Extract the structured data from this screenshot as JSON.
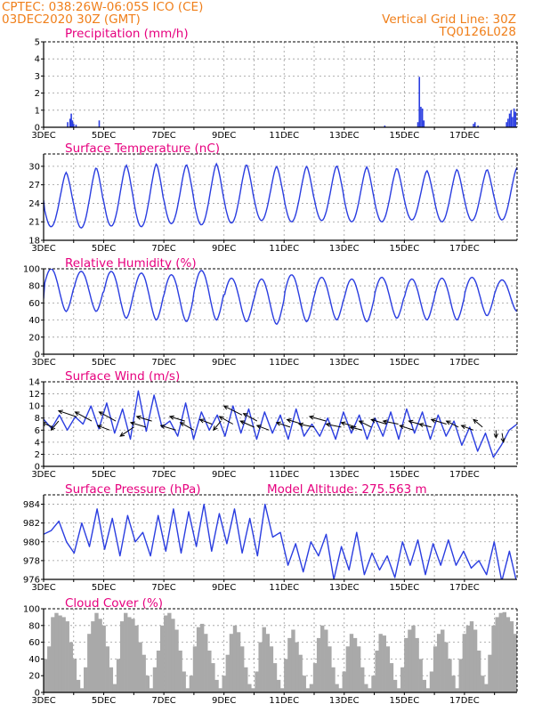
{
  "header": {
    "line1": "CPTEC:   038:26W-06:05S   ICO (CE)",
    "line2": "03DEC2020 30Z (GMT)",
    "grid_note": "Vertical Grid Line: 30Z",
    "code": "TQ0126L028"
  },
  "colors": {
    "header": "#f07f1a",
    "title": "#e6007e",
    "series": "#2a3de0",
    "cloud": "#a9a9a9",
    "grid": "#9a9a9a"
  },
  "chart_data": [
    {
      "id": "precip",
      "type": "bar",
      "title": "Precipitation (mm/h)",
      "x_ticks": [
        "3DEC",
        "5DEC",
        "7DEC",
        "9DEC",
        "11DEC",
        "13DEC",
        "15DEC",
        "17DEC"
      ],
      "x_tick_days": [
        0,
        2,
        4,
        6,
        8,
        10,
        12,
        14
      ],
      "xlim_days": [
        0,
        15.75
      ],
      "ylim": [
        0,
        5
      ],
      "yticks": [
        0,
        1,
        2,
        3,
        4,
        5
      ],
      "bars": [
        [
          0.8,
          0.3
        ],
        [
          0.88,
          0.5
        ],
        [
          0.92,
          0.8
        ],
        [
          0.96,
          0.4
        ],
        [
          1.0,
          0.2
        ],
        [
          1.08,
          0.15
        ],
        [
          1.85,
          0.4
        ],
        [
          11.35,
          0.1
        ],
        [
          12.45,
          0.3
        ],
        [
          12.5,
          2.95
        ],
        [
          12.55,
          1.2
        ],
        [
          12.6,
          1.1
        ],
        [
          12.65,
          0.4
        ],
        [
          14.3,
          0.2
        ],
        [
          14.35,
          0.3
        ],
        [
          14.45,
          0.1
        ],
        [
          15.4,
          0.3
        ],
        [
          15.45,
          0.5
        ],
        [
          15.5,
          0.8
        ],
        [
          15.55,
          1.0
        ],
        [
          15.6,
          0.6
        ],
        [
          15.65,
          1.1
        ],
        [
          15.7,
          0.9
        ]
      ]
    },
    {
      "id": "temp",
      "type": "line",
      "title": "Surface Temperature (nC)",
      "x_ticks": [
        "3DEC",
        "5DEC",
        "7DEC",
        "9DEC",
        "11DEC",
        "13DEC",
        "15DEC",
        "17DEC"
      ],
      "x_tick_days": [
        0,
        2,
        4,
        6,
        8,
        10,
        12,
        14
      ],
      "xlim_days": [
        0,
        15.75
      ],
      "ylim": [
        18,
        32
      ],
      "yticks": [
        18,
        21,
        24,
        27,
        30
      ],
      "series": [
        {
          "mins": [
            20.2,
            20.0,
            20.3,
            20.2,
            20.7,
            20.5,
            20.8,
            21.2,
            21.0,
            21.2,
            21.0,
            21.0,
            21.3,
            21.0,
            21.2,
            21.3
          ],
          "maxs": [
            29.0,
            29.8,
            30.2,
            30.4,
            30.3,
            30.4,
            30.3,
            30.0,
            30.0,
            30.1,
            29.9,
            29.7,
            29.3,
            29.5,
            29.5,
            29.8
          ],
          "start": 24.5,
          "end": 25.2
        }
      ]
    },
    {
      "id": "rh",
      "type": "line",
      "title": "Relative Humidity (%)",
      "x_ticks": [
        "3DEC",
        "5DEC",
        "7DEC",
        "9DEC",
        "11DEC",
        "13DEC",
        "15DEC",
        "17DEC"
      ],
      "x_tick_days": [
        0,
        2,
        4,
        6,
        8,
        10,
        12,
        14
      ],
      "xlim_days": [
        0,
        15.75
      ],
      "ylim": [
        0,
        100
      ],
      "yticks": [
        0,
        20,
        40,
        60,
        80,
        100
      ],
      "series": [
        {
          "mins": [
            50,
            50,
            42,
            40,
            38,
            40,
            38,
            35,
            38,
            40,
            38,
            42,
            40,
            40,
            45,
            50
          ],
          "maxs": [
            100,
            97,
            97,
            95,
            93,
            98,
            89,
            88,
            93,
            90,
            88,
            90,
            88,
            89,
            90,
            87
          ],
          "start": 65,
          "end": 70
        }
      ]
    },
    {
      "id": "wind",
      "type": "line",
      "title": "Surface Wind (m/s)",
      "x_ticks": [
        "3DEC",
        "5DEC",
        "7DEC",
        "9DEC",
        "11DEC",
        "13DEC",
        "15DEC",
        "17DEC"
      ],
      "x_tick_days": [
        0,
        2,
        4,
        6,
        8,
        10,
        12,
        14
      ],
      "xlim_days": [
        0,
        15.75
      ],
      "ylim": [
        0,
        14
      ],
      "yticks": [
        0,
        2,
        4,
        6,
        8,
        10,
        12,
        14
      ],
      "series": [
        {
          "values": [
            7.8,
            6.3,
            8.5,
            6.0,
            8.2,
            7.0,
            10.0,
            6.2,
            10.5,
            5.5,
            9.5,
            4.5,
            12.5,
            5.8,
            11.8,
            6.5,
            7.5,
            5.0,
            10.5,
            4.5,
            9.0,
            6.0,
            8.5,
            5.0,
            10.0,
            5.5,
            9.5,
            4.5,
            9.0,
            5.5,
            8.5,
            4.5,
            9.5,
            5.0,
            7.0,
            5.0,
            8.0,
            4.5,
            9.0,
            5.5,
            8.5,
            4.5,
            8.0,
            5.0,
            9.0,
            4.5,
            9.5,
            5.5,
            9.0,
            4.5,
            8.5,
            5.0,
            7.5,
            3.5,
            6.5,
            2.5,
            5.5,
            1.5,
            3.5,
            6.0,
            7.0
          ]
        }
      ],
      "arrows": [
        [
          0.3,
          6.5,
          -0.35,
          0.3
        ],
        [
          0.5,
          7.5,
          -0.25,
          -0.6
        ],
        [
          1.1,
          8.2,
          -0.6,
          0.4
        ],
        [
          1.6,
          7.5,
          -0.55,
          0.6
        ],
        [
          2.2,
          6.0,
          -0.4,
          0.3
        ],
        [
          2.4,
          7.5,
          -0.55,
          0.6
        ],
        [
          3.0,
          6.5,
          -0.45,
          -0.6
        ],
        [
          3.4,
          6.5,
          -0.5,
          0.3
        ],
        [
          3.6,
          7.5,
          -0.5,
          0.3
        ],
        [
          4.4,
          6.0,
          -0.5,
          0.3
        ],
        [
          4.7,
          7.5,
          -0.5,
          0.3
        ],
        [
          5.0,
          6.0,
          -0.45,
          0.5
        ],
        [
          5.6,
          7.0,
          -0.4,
          0.3
        ],
        [
          5.9,
          7.5,
          -0.25,
          -0.6
        ],
        [
          6.3,
          7.0,
          -0.45,
          0.5
        ],
        [
          6.6,
          8.5,
          -0.6,
          0.6
        ],
        [
          7.0,
          6.5,
          -0.45,
          0.4
        ],
        [
          7.1,
          7.5,
          -0.45,
          0.5
        ],
        [
          7.5,
          6.0,
          -0.4,
          0.3
        ],
        [
          8.2,
          6.5,
          -0.45,
          0.3
        ],
        [
          8.6,
          7.0,
          -0.5,
          0.3
        ],
        [
          9.0,
          6.5,
          -0.5,
          0.2
        ],
        [
          9.4,
          7.5,
          -0.55,
          0.3
        ],
        [
          9.9,
          6.5,
          -0.5,
          0.2
        ],
        [
          10.4,
          6.5,
          -0.5,
          0.3
        ],
        [
          10.6,
          6.0,
          -0.4,
          0.2
        ],
        [
          10.9,
          6.5,
          -0.4,
          0.4
        ],
        [
          11.4,
          7.0,
          -0.5,
          0.3
        ],
        [
          11.8,
          7.0,
          -0.5,
          0.2
        ],
        [
          12.3,
          6.0,
          -0.45,
          0.3
        ],
        [
          12.5,
          7.0,
          -0.35,
          0.2
        ],
        [
          12.9,
          6.5,
          -0.4,
          0.2
        ],
        [
          13.4,
          7.0,
          -0.5,
          0.3
        ],
        [
          13.8,
          6.5,
          -0.4,
          0.4
        ],
        [
          14.3,
          6.0,
          -0.4,
          0.3
        ],
        [
          14.6,
          6.5,
          -0.3,
          0.5
        ],
        [
          15.05,
          6.0,
          0.0,
          -0.5
        ],
        [
          15.25,
          5.5,
          0.05,
          -0.6
        ]
      ]
    },
    {
      "id": "pres",
      "type": "line",
      "title": "Surface Pressure (hPa)",
      "subtitle": "Model Altitude: 275.563  m",
      "x_ticks": [
        "3DEC",
        "5DEC",
        "7DEC",
        "9DEC",
        "11DEC",
        "13DEC",
        "15DEC",
        "17DEC"
      ],
      "x_tick_days": [
        0,
        2,
        4,
        6,
        8,
        10,
        12,
        14
      ],
      "xlim_days": [
        0,
        15.75
      ],
      "ylim": [
        976,
        985
      ],
      "yticks": [
        976,
        978,
        980,
        982,
        984
      ],
      "series": [
        {
          "values": [
            980.8,
            981.2,
            982.2,
            980.0,
            978.8,
            982.0,
            979.5,
            983.5,
            979.2,
            982.5,
            978.5,
            982.8,
            980.0,
            981.0,
            978.5,
            982.8,
            979.0,
            983.5,
            978.8,
            983.2,
            979.5,
            984.0,
            979.0,
            983.0,
            979.8,
            983.5,
            978.8,
            982.5,
            978.5,
            984.0,
            980.5,
            981.0,
            977.5,
            979.8,
            976.8,
            980.0,
            978.5,
            980.8,
            976.0,
            979.5,
            977.0,
            981.0,
            976.5,
            978.8,
            977.0,
            978.5,
            976.2,
            980.0,
            977.5,
            980.2,
            976.5,
            979.8,
            977.5,
            980.2,
            977.5,
            979.0,
            977.2,
            978.0,
            976.5,
            980.0,
            975.8,
            979.0,
            975.5
          ]
        }
      ]
    },
    {
      "id": "cloud",
      "type": "bar",
      "title": "Cloud Cover (%)",
      "x_ticks": [
        "3DEC",
        "5DEC",
        "7DEC",
        "9DEC",
        "11DEC",
        "13DEC",
        "15DEC",
        "17DEC"
      ],
      "x_tick_days": [
        0,
        2,
        4,
        6,
        8,
        10,
        12,
        14
      ],
      "xlim_days": [
        0,
        15.75
      ],
      "ylim": [
        0,
        100
      ],
      "yticks": [
        0,
        20,
        40,
        60,
        80,
        100
      ],
      "values": [
        40,
        55,
        90,
        95,
        92,
        90,
        85,
        60,
        40,
        15,
        5,
        30,
        70,
        85,
        95,
        88,
        80,
        55,
        30,
        10,
        40,
        85,
        95,
        90,
        88,
        80,
        60,
        45,
        20,
        5,
        30,
        50,
        80,
        92,
        95,
        88,
        75,
        50,
        25,
        5,
        20,
        55,
        78,
        82,
        70,
        50,
        35,
        15,
        5,
        20,
        45,
        70,
        80,
        72,
        55,
        30,
        10,
        5,
        25,
        60,
        78,
        70,
        55,
        35,
        15,
        5,
        40,
        65,
        75,
        60,
        45,
        20,
        5,
        10,
        35,
        65,
        80,
        75,
        55,
        30,
        10,
        5,
        25,
        55,
        70,
        65,
        55,
        30,
        10,
        5,
        20,
        50,
        70,
        68,
        55,
        35,
        15,
        5,
        30,
        65,
        75,
        80,
        65,
        40,
        15,
        5,
        25,
        55,
        70,
        75,
        60,
        40,
        20,
        5,
        40,
        70,
        80,
        85,
        75,
        50,
        20,
        10,
        45,
        80,
        90,
        95,
        96,
        90,
        85,
        70
      ]
    }
  ]
}
